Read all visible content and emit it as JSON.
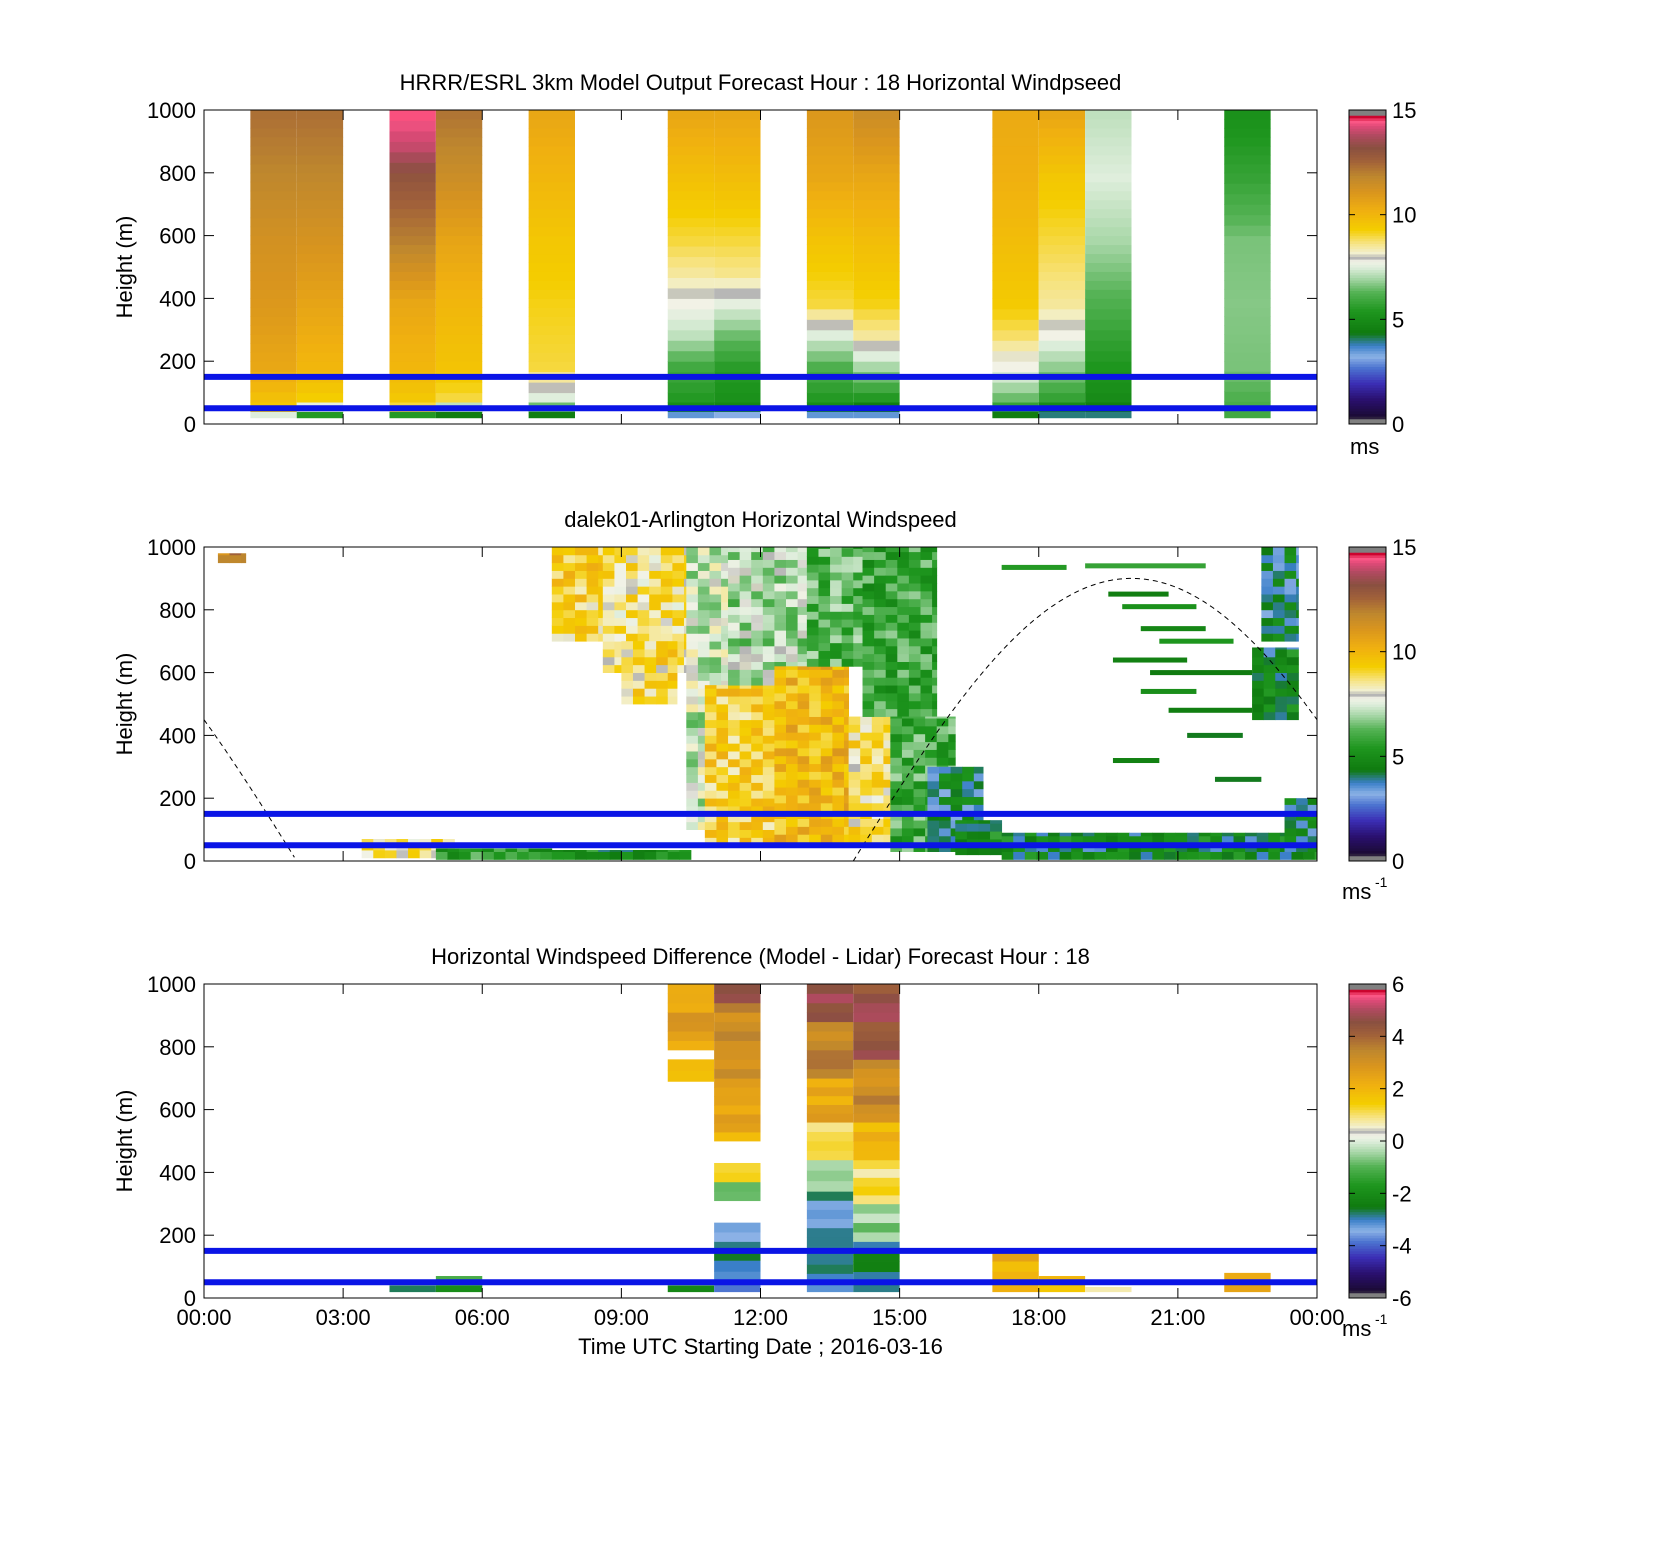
{
  "chart_data": [
    {
      "type": "heatmap",
      "title": "HRRR/ESRL 3km Model Output   Forecast Hour : 18 Horizontal Windpseed",
      "ylabel": "Height (m)",
      "ylim": [
        0,
        1000
      ],
      "yticks": [
        "0",
        "200",
        "400",
        "600",
        "800",
        "1000"
      ],
      "xlim_hours": [
        0,
        24
      ],
      "colorbar": {
        "min": 0,
        "max": 15,
        "ticks": [
          "0",
          "5",
          "10",
          "15"
        ],
        "unit": "ms",
        "unit_sup": ""
      },
      "reference_lines_m": [
        50,
        150
      ],
      "profiles": [
        {
          "start_h": 1.0,
          "end_h": 2.0,
          "z_top": [
            40,
            70,
            200,
            400,
            600,
            800,
            1000
          ],
          "speed": [
            7.5,
            9.5,
            10.5,
            11.0,
            11.3,
            11.8,
            12.3
          ]
        },
        {
          "start_h": 2.0,
          "end_h": 3.0,
          "z_top": [
            40,
            70,
            100,
            200,
            400,
            600,
            800,
            1000
          ],
          "speed": [
            5.5,
            7.6,
            9.3,
            10.0,
            10.6,
            11.2,
            11.8,
            12.3
          ]
        },
        {
          "start_h": 4.0,
          "end_h": 5.0,
          "z_top": [
            40,
            70,
            100,
            200,
            400,
            600,
            800,
            900,
            1000
          ],
          "speed": [
            5.5,
            9.0,
            9.5,
            10.0,
            10.5,
            12.0,
            13.0,
            14.0,
            14.5
          ]
        },
        {
          "start_h": 5.0,
          "end_h": 6.0,
          "z_top": [
            40,
            70,
            100,
            200,
            400,
            600,
            800,
            1000
          ],
          "speed": [
            4.5,
            7.2,
            9.0,
            9.6,
            10.0,
            10.6,
            11.5,
            12.2
          ]
        },
        {
          "start_h": 7.0,
          "end_h": 8.0,
          "z_top": [
            40,
            70,
            100,
            200,
            400,
            600,
            800,
            1000
          ],
          "speed": [
            4.5,
            6.5,
            7.5,
            9.0,
            9.2,
            9.5,
            10.0,
            10.5
          ]
        },
        {
          "start_h": 10.0,
          "end_h": 11.0,
          "z_top": [
            40,
            70,
            100,
            200,
            300,
            400,
            500,
            600,
            800,
            1000
          ],
          "speed": [
            3.5,
            5.0,
            5.5,
            6.0,
            7.2,
            7.8,
            8.5,
            9.0,
            9.7,
            10.5
          ]
        },
        {
          "start_h": 11.0,
          "end_h": 12.0,
          "z_top": [
            40,
            70,
            100,
            200,
            300,
            400,
            500,
            600,
            800,
            1000
          ],
          "speed": [
            3.2,
            4.8,
            5.2,
            5.6,
            6.5,
            7.6,
            8.6,
            9.0,
            9.8,
            10.5
          ]
        },
        {
          "start_h": 13.0,
          "end_h": 14.0,
          "z_top": [
            40,
            70,
            100,
            200,
            300,
            400,
            600,
            800,
            1000
          ],
          "speed": [
            3.5,
            5.0,
            5.5,
            6.2,
            7.5,
            9.0,
            9.6,
            10.5,
            11.0
          ]
        },
        {
          "start_h": 14.0,
          "end_h": 15.0,
          "z_top": [
            40,
            70,
            100,
            200,
            300,
            400,
            600,
            800,
            1000
          ],
          "speed": [
            3.5,
            4.5,
            5.5,
            7.0,
            8.5,
            9.2,
            9.8,
            10.5,
            11.5
          ]
        },
        {
          "start_h": 17.0,
          "end_h": 18.0,
          "z_top": [
            40,
            70,
            100,
            200,
            300,
            400,
            600,
            800,
            1000
          ],
          "speed": [
            4.5,
            5.8,
            6.5,
            7.8,
            8.8,
            9.4,
            9.8,
            10.2,
            10.4
          ]
        },
        {
          "start_h": 18.0,
          "end_h": 19.0,
          "z_top": [
            40,
            70,
            100,
            200,
            300,
            400,
            600,
            800,
            1000
          ],
          "speed": [
            4.0,
            5.0,
            5.8,
            6.8,
            7.8,
            8.5,
            9.0,
            9.5,
            10.5
          ]
        },
        {
          "start_h": 19.0,
          "end_h": 20.0,
          "z_top": [
            40,
            70,
            100,
            200,
            300,
            400,
            600,
            800,
            1000
          ],
          "speed": [
            4.0,
            4.5,
            5.0,
            5.4,
            5.8,
            6.2,
            7.0,
            7.5,
            7.2
          ]
        },
        {
          "start_h": 22.0,
          "end_h": 23.0,
          "z_top": [
            40,
            200,
            400,
            600,
            700,
            800,
            1000
          ],
          "speed": [
            6.0,
            6.6,
            6.7,
            6.6,
            6.2,
            5.8,
            5.2
          ]
        }
      ]
    },
    {
      "type": "heatmap",
      "title": "dalek01-Arlington  Horizontal Windspeed",
      "ylabel": "Height (m)",
      "ylim": [
        0,
        1000
      ],
      "yticks": [
        "0",
        "200",
        "400",
        "600",
        "800",
        "1000"
      ],
      "xlim_hours": [
        0,
        24
      ],
      "colorbar": {
        "min": 0,
        "max": 15,
        "ticks": [
          "0",
          "5",
          "10",
          "15"
        ],
        "unit": "ms",
        "unit_sup": "-1"
      },
      "reference_lines_m": [
        50,
        150
      ],
      "boundary_layer_curve": {
        "peak_hour": 20.0,
        "peak_height_m": 900,
        "period_hours": 12.0
      },
      "regions": [
        {
          "start_h": 0.3,
          "end_h": 0.9,
          "z_min": 950,
          "z_max": 980,
          "speed": 11.5
        },
        {
          "start_h": 3.4,
          "end_h": 5.4,
          "z_min": 10,
          "z_max": 70,
          "speed": 8.5
        },
        {
          "start_h": 5.0,
          "end_h": 7.5,
          "z_min": 5,
          "z_max": 40,
          "speed": 5.5
        },
        {
          "start_h": 7.5,
          "end_h": 10.5,
          "z_min": 5,
          "z_max": 35,
          "speed": 5.0
        },
        {
          "start_h": 7.5,
          "end_h": 8.6,
          "z_min": 700,
          "z_max": 1000,
          "speed": 9.2
        },
        {
          "start_h": 8.6,
          "end_h": 10.4,
          "z_min": 600,
          "z_max": 1000,
          "speed": 8.6
        },
        {
          "start_h": 9.0,
          "end_h": 10.2,
          "z_min": 500,
          "z_max": 700,
          "speed": 9.0
        },
        {
          "start_h": 10.4,
          "end_h": 11.3,
          "z_min": 100,
          "z_max": 1000,
          "speed": 7.4
        },
        {
          "start_h": 10.8,
          "end_h": 12.3,
          "z_min": 50,
          "z_max": 560,
          "speed": 9.3
        },
        {
          "start_h": 11.3,
          "end_h": 13.0,
          "z_min": 560,
          "z_max": 1000,
          "speed": 7.0
        },
        {
          "start_h": 12.3,
          "end_h": 13.9,
          "z_min": 60,
          "z_max": 620,
          "speed": 10.0
        },
        {
          "start_h": 13.0,
          "end_h": 14.2,
          "z_min": 620,
          "z_max": 1000,
          "speed": 6.2
        },
        {
          "start_h": 13.9,
          "end_h": 14.8,
          "z_min": 60,
          "z_max": 460,
          "speed": 8.8
        },
        {
          "start_h": 14.2,
          "end_h": 15.8,
          "z_min": 460,
          "z_max": 1000,
          "speed": 5.8
        },
        {
          "start_h": 14.8,
          "end_h": 16.2,
          "z_min": 30,
          "z_max": 460,
          "speed": 6.0
        },
        {
          "start_h": 15.6,
          "end_h": 16.8,
          "z_min": 30,
          "z_max": 300,
          "speed": 4.2
        },
        {
          "start_h": 16.2,
          "end_h": 17.2,
          "z_min": 20,
          "z_max": 130,
          "speed": 4.8
        },
        {
          "start_h": 17.2,
          "end_h": 24.0,
          "z_min": 5,
          "z_max": 90,
          "speed": 4.6
        },
        {
          "start_h": 22.6,
          "end_h": 23.6,
          "z_min": 450,
          "z_max": 680,
          "speed": 4.6
        },
        {
          "start_h": 22.8,
          "end_h": 23.6,
          "z_min": 700,
          "z_max": 1000,
          "speed": 4.2
        },
        {
          "start_h": 23.3,
          "end_h": 24.0,
          "z_min": 30,
          "z_max": 200,
          "speed": 4.4
        }
      ],
      "streaks": [
        {
          "start_h": 17.2,
          "end_h": 18.6,
          "z_m": 935,
          "speed": 5.5
        },
        {
          "start_h": 19.0,
          "end_h": 21.6,
          "z_m": 940,
          "speed": 5.8
        },
        {
          "start_h": 19.5,
          "end_h": 20.8,
          "z_m": 850,
          "speed": 4.5
        },
        {
          "start_h": 19.8,
          "end_h": 21.4,
          "z_m": 810,
          "speed": 5.2
        },
        {
          "start_h": 20.2,
          "end_h": 21.6,
          "z_m": 740,
          "speed": 4.8
        },
        {
          "start_h": 20.6,
          "end_h": 22.2,
          "z_m": 700,
          "speed": 5.4
        },
        {
          "start_h": 19.6,
          "end_h": 21.2,
          "z_m": 640,
          "speed": 4.6
        },
        {
          "start_h": 20.4,
          "end_h": 22.6,
          "z_m": 600,
          "speed": 4.4
        },
        {
          "start_h": 20.2,
          "end_h": 21.4,
          "z_m": 540,
          "speed": 5.1
        },
        {
          "start_h": 20.8,
          "end_h": 22.6,
          "z_m": 480,
          "speed": 4.5
        },
        {
          "start_h": 21.2,
          "end_h": 22.4,
          "z_m": 400,
          "speed": 4.3
        },
        {
          "start_h": 19.6,
          "end_h": 20.6,
          "z_m": 320,
          "speed": 4.6
        },
        {
          "start_h": 21.8,
          "end_h": 22.8,
          "z_m": 260,
          "speed": 4.3
        }
      ]
    },
    {
      "type": "heatmap",
      "title": "Horizontal Windspeed Difference (Model - Lidar) Forecast Hour : 18",
      "ylabel": "Height (m)",
      "xlabel": "Time UTC  Starting Date ; 2016-03-16",
      "ylim": [
        0,
        1000
      ],
      "yticks": [
        "0",
        "200",
        "400",
        "600",
        "800",
        "1000"
      ],
      "xticks": [
        "00:00",
        "03:00",
        "06:00",
        "09:00",
        "12:00",
        "15:00",
        "18:00",
        "21:00",
        "00:00"
      ],
      "xlim_hours": [
        0,
        24
      ],
      "colorbar": {
        "min": -6,
        "max": 6,
        "ticks": [
          "-6",
          "-4",
          "-2",
          "0",
          "2",
          "4",
          "6"
        ],
        "unit": "ms",
        "unit_sup": "-1"
      },
      "reference_lines_m": [
        50,
        150
      ],
      "cells": [
        {
          "start_h": 4.0,
          "end_h": 5.0,
          "z_min": 20,
          "z_max": 40,
          "diff": -2.5
        },
        {
          "start_h": 5.0,
          "end_h": 6.0,
          "z_min": 20,
          "z_max": 40,
          "diff": -2.0
        },
        {
          "start_h": 5.0,
          "end_h": 6.0,
          "z_min": 40,
          "z_max": 70,
          "diff": -1.0
        },
        {
          "start_h": 10.0,
          "end_h": 11.0,
          "z_min": 20,
          "z_max": 40,
          "diff": -2.5
        },
        {
          "start_h": 10.0,
          "end_h": 11.0,
          "z_min": 690,
          "z_max": 760,
          "diff": 1.8
        },
        {
          "start_h": 10.0,
          "end_h": 11.0,
          "z_min": 790,
          "z_max": 1000,
          "diff": 2.6
        },
        {
          "start_h": 11.0,
          "end_h": 12.0,
          "z_min": 20,
          "z_max": 50,
          "diff": -3.5
        },
        {
          "start_h": 11.0,
          "end_h": 12.0,
          "z_min": 50,
          "z_max": 120,
          "diff": -2.8
        },
        {
          "start_h": 11.0,
          "end_h": 12.0,
          "z_min": 120,
          "z_max": 240,
          "diff": -3.0
        },
        {
          "start_h": 11.0,
          "end_h": 12.0,
          "z_min": 310,
          "z_max": 370,
          "diff": -1.0
        },
        {
          "start_h": 11.0,
          "end_h": 12.0,
          "z_min": 370,
          "z_max": 430,
          "diff": 1.0
        },
        {
          "start_h": 11.0,
          "end_h": 12.0,
          "z_min": 500,
          "z_max": 700,
          "diff": 2.3
        },
        {
          "start_h": 11.0,
          "end_h": 12.0,
          "z_min": 700,
          "z_max": 940,
          "diff": 3.2
        },
        {
          "start_h": 11.0,
          "end_h": 12.0,
          "z_min": 940,
          "z_max": 1000,
          "diff": 4.6
        },
        {
          "start_h": 13.0,
          "end_h": 14.0,
          "z_min": 20,
          "z_max": 340,
          "diff": -3.0
        },
        {
          "start_h": 13.0,
          "end_h": 14.0,
          "z_min": 340,
          "z_max": 440,
          "diff": -0.8
        },
        {
          "start_h": 13.0,
          "end_h": 14.0,
          "z_min": 440,
          "z_max": 560,
          "diff": 1.3
        },
        {
          "start_h": 13.0,
          "end_h": 14.0,
          "z_min": 560,
          "z_max": 700,
          "diff": 2.4
        },
        {
          "start_h": 13.0,
          "end_h": 14.0,
          "z_min": 700,
          "z_max": 880,
          "diff": 3.4
        },
        {
          "start_h": 13.0,
          "end_h": 14.0,
          "z_min": 880,
          "z_max": 1000,
          "diff": 4.8
        },
        {
          "start_h": 14.0,
          "end_h": 15.0,
          "z_min": 20,
          "z_max": 180,
          "diff": -2.6
        },
        {
          "start_h": 14.0,
          "end_h": 15.0,
          "z_min": 180,
          "z_max": 300,
          "diff": -0.5
        },
        {
          "start_h": 14.0,
          "end_h": 15.0,
          "z_min": 300,
          "z_max": 440,
          "diff": 1.0
        },
        {
          "start_h": 14.0,
          "end_h": 15.0,
          "z_min": 440,
          "z_max": 560,
          "diff": 2.0
        },
        {
          "start_h": 14.0,
          "end_h": 15.0,
          "z_min": 560,
          "z_max": 760,
          "diff": 3.3
        },
        {
          "start_h": 14.0,
          "end_h": 15.0,
          "z_min": 760,
          "z_max": 1000,
          "diff": 4.6
        },
        {
          "start_h": 17.0,
          "end_h": 18.0,
          "z_min": 20,
          "z_max": 150,
          "diff": 2.2
        },
        {
          "start_h": 18.0,
          "end_h": 19.0,
          "z_min": 20,
          "z_max": 70,
          "diff": 2.0
        },
        {
          "start_h": 19.0,
          "end_h": 20.0,
          "z_min": 20,
          "z_max": 35,
          "diff": 0.8
        },
        {
          "start_h": 22.0,
          "end_h": 23.0,
          "z_min": 20,
          "z_max": 80,
          "diff": 2.6
        }
      ]
    }
  ]
}
